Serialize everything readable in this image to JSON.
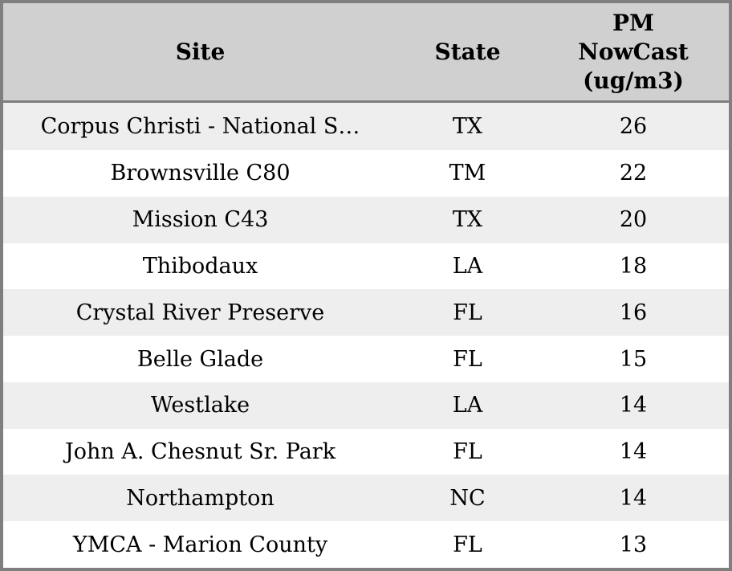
{
  "table": {
    "columns": [
      {
        "key": "site",
        "label": "Site"
      },
      {
        "key": "state",
        "label": "State"
      },
      {
        "key": "pm",
        "label": "PM NowCast (ug/m3)",
        "label_lines": [
          "PM",
          "NowCast",
          "(ug/m3)"
        ]
      }
    ],
    "rows": [
      {
        "site": "Corpus Christi - National S…",
        "state": "TX",
        "pm": "26"
      },
      {
        "site": "Brownsville C80",
        "state": "TM",
        "pm": "22"
      },
      {
        "site": "Mission C43",
        "state": "TX",
        "pm": "20"
      },
      {
        "site": "Thibodaux",
        "state": "LA",
        "pm": "18"
      },
      {
        "site": "Crystal River Preserve",
        "state": "FL",
        "pm": "16"
      },
      {
        "site": "Belle Glade",
        "state": "FL",
        "pm": "15"
      },
      {
        "site": "Westlake",
        "state": "LA",
        "pm": "14"
      },
      {
        "site": "John A. Chesnut Sr. Park",
        "state": "FL",
        "pm": "14"
      },
      {
        "site": "Northampton",
        "state": "NC",
        "pm": "14"
      },
      {
        "site": "YMCA - Marion County",
        "state": "FL",
        "pm": "13"
      }
    ]
  },
  "colors": {
    "header_bg": "#d0d0d0",
    "row_stripe_bg": "#eeeeee",
    "row_bg": "#ffffff",
    "border": "#7f7f7f",
    "text": "#000000"
  },
  "chart_data": {
    "type": "table",
    "title": "",
    "columns": [
      "Site",
      "State",
      "PM NowCast (ug/m3)"
    ],
    "rows": [
      [
        "Corpus Christi - National S…",
        "TX",
        26
      ],
      [
        "Brownsville C80",
        "TM",
        22
      ],
      [
        "Mission C43",
        "TX",
        20
      ],
      [
        "Thibodaux",
        "LA",
        18
      ],
      [
        "Crystal River Preserve",
        "FL",
        16
      ],
      [
        "Belle Glade",
        "FL",
        15
      ],
      [
        "Westlake",
        "LA",
        14
      ],
      [
        "John A. Chesnut Sr. Park",
        "FL",
        14
      ],
      [
        "Northampton",
        "NC",
        14
      ],
      [
        "YMCA - Marion County",
        "FL",
        13
      ]
    ],
    "sort": {
      "column": "PM NowCast (ug/m3)",
      "order": "desc"
    }
  }
}
